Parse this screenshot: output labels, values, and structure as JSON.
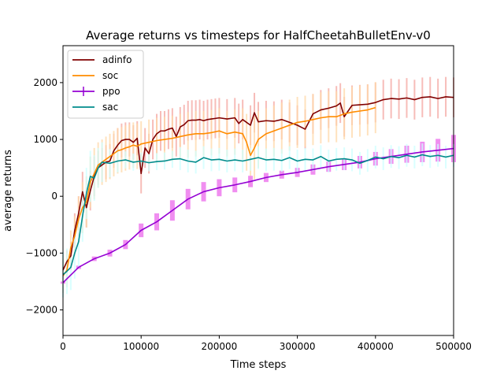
{
  "chart_data": {
    "type": "line",
    "title": "Average returns vs timesteps for HalfCheetahBulletEnv-v0",
    "xlabel": "Time steps",
    "ylabel": "average returns",
    "xlim": [
      0,
      500000
    ],
    "ylim": [
      -2450,
      2650
    ],
    "xticks": [
      0,
      100000,
      200000,
      300000,
      400000,
      500000
    ],
    "yticks": [
      -2000,
      -1000,
      0,
      1000,
      2000
    ],
    "grid": false,
    "legend_position": "top-left",
    "series": [
      {
        "name": "adinfo",
        "color": "#800000",
        "band_color": "#f4a6a0",
        "x": [
          0,
          5000,
          10000,
          15000,
          20000,
          25000,
          30000,
          35000,
          40000,
          45000,
          50000,
          55000,
          60000,
          65000,
          70000,
          75000,
          80000,
          85000,
          90000,
          95000,
          100000,
          105000,
          110000,
          115000,
          120000,
          125000,
          130000,
          135000,
          140000,
          145000,
          150000,
          155000,
          160000,
          165000,
          170000,
          175000,
          180000,
          185000,
          190000,
          195000,
          200000,
          210000,
          220000,
          225000,
          230000,
          240000,
          245000,
          250000,
          260000,
          270000,
          280000,
          290000,
          300000,
          310000,
          320000,
          330000,
          340000,
          350000,
          355000,
          360000,
          370000,
          380000,
          390000,
          400000,
          410000,
          420000,
          430000,
          440000,
          450000,
          460000,
          470000,
          480000,
          490000,
          500000
        ],
        "y": [
          -1300,
          -1150,
          -1050,
          -600,
          -300,
          80,
          -200,
          100,
          350,
          500,
          550,
          600,
          620,
          800,
          900,
          980,
          1000,
          1000,
          950,
          1020,
          400,
          850,
          750,
          1000,
          1100,
          1150,
          1150,
          1180,
          1200,
          1050,
          1220,
          1260,
          1330,
          1340,
          1340,
          1350,
          1330,
          1350,
          1360,
          1370,
          1380,
          1360,
          1380,
          1280,
          1350,
          1250,
          1470,
          1310,
          1330,
          1320,
          1350,
          1300,
          1250,
          1180,
          1450,
          1520,
          1550,
          1590,
          1640,
          1400,
          1600,
          1610,
          1620,
          1650,
          1700,
          1720,
          1710,
          1730,
          1700,
          1740,
          1750,
          1720,
          1750,
          1740
        ],
        "spread": [
          150,
          200,
          250,
          300,
          300,
          350,
          350,
          350,
          350,
          300,
          300,
          300,
          300,
          300,
          300,
          300,
          300,
          300,
          300,
          300,
          350,
          350,
          350,
          350,
          350,
          350,
          350,
          350,
          350,
          350,
          350,
          350,
          350,
          350,
          350,
          350,
          350,
          350,
          350,
          350,
          350,
          350,
          350,
          350,
          350,
          350,
          350,
          350,
          350,
          350,
          350,
          350,
          350,
          350,
          350,
          350,
          350,
          350,
          350,
          350,
          350,
          350,
          350,
          350,
          350,
          350,
          350,
          350,
          350,
          350,
          350,
          350,
          350,
          350
        ]
      },
      {
        "name": "soc",
        "color": "#ff8c00",
        "band_color": "#ffd8a8",
        "x": [
          0,
          5000,
          10000,
          15000,
          20000,
          25000,
          30000,
          35000,
          40000,
          45000,
          50000,
          55000,
          60000,
          65000,
          70000,
          75000,
          80000,
          85000,
          90000,
          95000,
          100000,
          110000,
          120000,
          130000,
          140000,
          150000,
          160000,
          170000,
          180000,
          190000,
          200000,
          210000,
          220000,
          230000,
          235000,
          240000,
          245000,
          250000,
          260000,
          270000,
          280000,
          290000,
          300000,
          310000,
          320000,
          330000,
          340000,
          350000,
          360000,
          370000,
          380000,
          390000,
          400000
        ],
        "y": [
          -1400,
          -1300,
          -900,
          -700,
          -400,
          -200,
          -100,
          250,
          400,
          550,
          600,
          650,
          700,
          750,
          800,
          820,
          850,
          870,
          900,
          880,
          920,
          950,
          980,
          1000,
          1020,
          1050,
          1080,
          1100,
          1100,
          1120,
          1150,
          1100,
          1130,
          1100,
          950,
          720,
          850,
          1000,
          1100,
          1150,
          1200,
          1250,
          1300,
          1320,
          1350,
          1380,
          1400,
          1400,
          1450,
          1480,
          1500,
          1520,
          1560
        ],
        "spread": [
          300,
          300,
          300,
          350,
          400,
          450,
          450,
          450,
          450,
          400,
          400,
          400,
          400,
          400,
          400,
          400,
          400,
          400,
          400,
          400,
          400,
          400,
          400,
          400,
          400,
          400,
          400,
          400,
          400,
          400,
          400,
          400,
          400,
          450,
          500,
          550,
          550,
          500,
          450,
          450,
          450,
          450,
          450,
          450,
          450,
          450,
          450,
          450,
          450,
          450,
          450,
          450,
          450
        ]
      },
      {
        "name": "ppo",
        "color": "#9400d3",
        "band_color": "#ee82ee",
        "x": [
          0,
          20000,
          40000,
          60000,
          80000,
          100000,
          120000,
          140000,
          160000,
          180000,
          200000,
          220000,
          240000,
          260000,
          280000,
          300000,
          320000,
          340000,
          360000,
          380000,
          400000,
          420000,
          440000,
          460000,
          480000,
          500000
        ],
        "y": [
          -1520,
          -1250,
          -1100,
          -1000,
          -850,
          -600,
          -450,
          -250,
          -50,
          80,
          150,
          200,
          260,
          330,
          380,
          420,
          470,
          520,
          560,
          600,
          660,
          700,
          740,
          780,
          810,
          840
        ],
        "spread": [
          20,
          30,
          40,
          60,
          80,
          120,
          150,
          180,
          180,
          170,
          150,
          130,
          100,
          80,
          70,
          80,
          90,
          90,
          100,
          110,
          120,
          130,
          150,
          180,
          200,
          240
        ]
      },
      {
        "name": "sac",
        "color": "#008b8b",
        "band_color": "#ccffff",
        "x": [
          0,
          5000,
          10000,
          15000,
          20000,
          25000,
          30000,
          35000,
          40000,
          45000,
          50000,
          60000,
          70000,
          80000,
          90000,
          100000,
          110000,
          120000,
          130000,
          140000,
          150000,
          160000,
          170000,
          180000,
          190000,
          200000,
          210000,
          220000,
          230000,
          240000,
          250000,
          260000,
          270000,
          280000,
          290000,
          300000,
          310000,
          320000,
          330000,
          340000,
          350000,
          360000,
          370000,
          380000,
          390000,
          400000,
          410000,
          420000,
          430000,
          440000,
          450000,
          460000,
          470000,
          480000,
          490000,
          500000
        ],
        "y": [
          -1380,
          -1320,
          -1250,
          -1000,
          -800,
          -350,
          50,
          350,
          320,
          500,
          600,
          580,
          620,
          640,
          600,
          620,
          590,
          610,
          620,
          650,
          660,
          620,
          600,
          680,
          640,
          650,
          620,
          640,
          620,
          650,
          680,
          640,
          650,
          630,
          680,
          620,
          650,
          640,
          700,
          620,
          650,
          660,
          640,
          580,
          630,
          690,
          660,
          700,
          680,
          720,
          690,
          730,
          700,
          720,
          690,
          720
        ],
        "spread": [
          400,
          400,
          400,
          450,
          450,
          450,
          450,
          450,
          400,
          350,
          350,
          250,
          200,
          150,
          150,
          150,
          150,
          150,
          150,
          150,
          200,
          200,
          200,
          200,
          200,
          200,
          200,
          200,
          200,
          200,
          200,
          200,
          200,
          200,
          200,
          200,
          200,
          200,
          200,
          200,
          200,
          200,
          200,
          200,
          200,
          200,
          200,
          200,
          200,
          200,
          200,
          200,
          200,
          200,
          200,
          200
        ]
      }
    ]
  }
}
